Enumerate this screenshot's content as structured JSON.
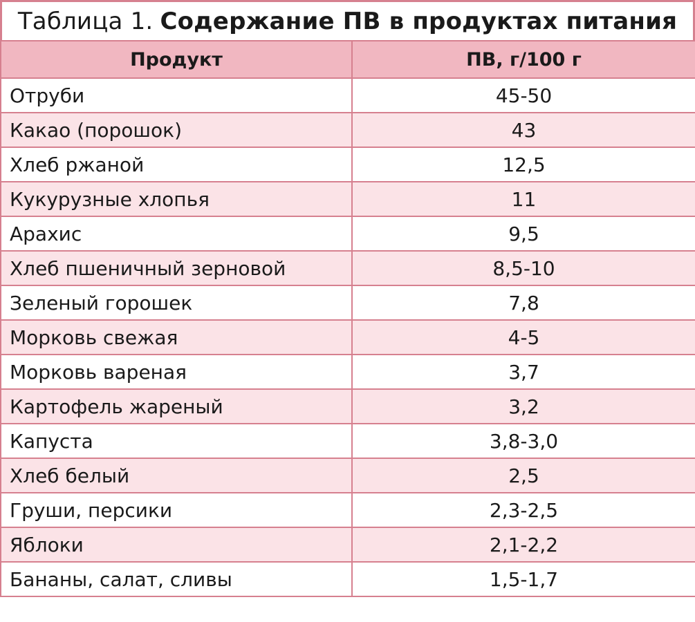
{
  "caption": {
    "prefix": "Таблица 1.",
    "title": "Содержание ПВ в продуктах питания"
  },
  "header": {
    "product": "Продукт",
    "value": "ПВ, г/100 г"
  },
  "rows": [
    {
      "product": "Отруби",
      "value": "45-50"
    },
    {
      "product": "Какао (порошок)",
      "value": "43"
    },
    {
      "product": "Хлеб ржаной",
      "value": "12,5"
    },
    {
      "product": "Кукурузные хлопья",
      "value": "11"
    },
    {
      "product": "Арахис",
      "value": "9,5"
    },
    {
      "product": "Хлеб пшеничный зерновой",
      "value": "8,5-10"
    },
    {
      "product": "Зеленый горошек",
      "value": "7,8"
    },
    {
      "product": "Морковь свежая",
      "value": "4-5"
    },
    {
      "product": "Морковь вареная",
      "value": "3,7"
    },
    {
      "product": "Картофель жареный",
      "value": "3,2"
    },
    {
      "product": "Капуста",
      "value": "3,8-3,0"
    },
    {
      "product": "Хлеб белый",
      "value": "2,5"
    },
    {
      "product": "Груши, персики",
      "value": "2,3-2,5"
    },
    {
      "product": "Яблоки",
      "value": "2,1-2,2"
    },
    {
      "product": "Бананы, салат, сливы",
      "value": "1,5-1,7"
    }
  ],
  "colors": {
    "border": "#d6808f",
    "header_bg": "#f1b7c1",
    "stripe_bg": "#fbe3e7"
  }
}
